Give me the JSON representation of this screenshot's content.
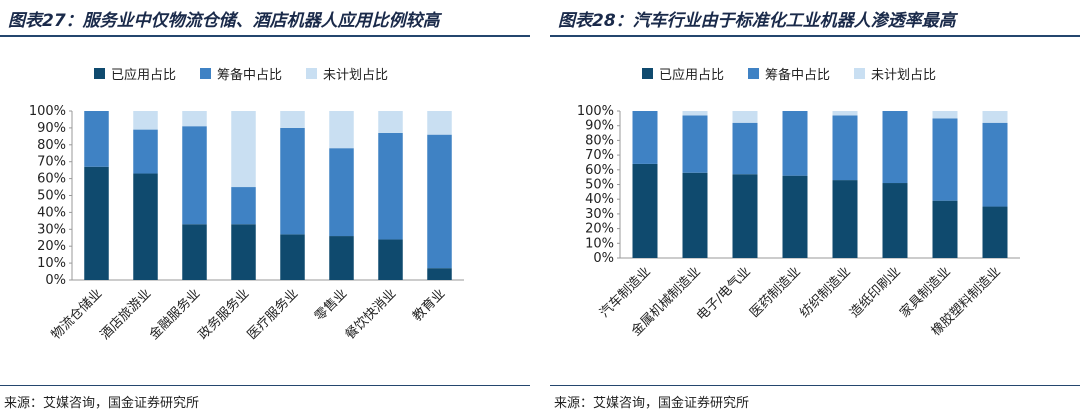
{
  "colors": {
    "s1": "#0f4a6e",
    "s2": "#3f82c4",
    "s3": "#c9dff2"
  },
  "charts": [
    {
      "title": "图表27：服务业中仅物流仓储、酒店机器人应用比例较高",
      "source": "来源：艾媒咨询，国金证券研究所"
    },
    {
      "title": "图表28：汽车行业由于标准化工业机器人渗透率最高",
      "source": "来源：艾媒咨询，国金证券研究所"
    }
  ],
  "chart_data": [
    {
      "type": "bar",
      "stacked": true,
      "title": "图表27：服务业中仅物流仓储、酒店机器人应用比例较高",
      "ylim": [
        0,
        100
      ],
      "yticks": [
        "0%",
        "10%",
        "20%",
        "30%",
        "40%",
        "50%",
        "60%",
        "70%",
        "80%",
        "90%",
        "100%"
      ],
      "legend": "top",
      "categories": [
        "物流仓储业",
        "酒店旅游业",
        "金融服务业",
        "政务服务业",
        "医疗服务业",
        "零售业",
        "餐饮快消业",
        "教育业"
      ],
      "series": [
        {
          "name": "已应用占比",
          "values": [
            67,
            63,
            33,
            33,
            27,
            26,
            24,
            7
          ]
        },
        {
          "name": "筹备中占比",
          "values": [
            33,
            26,
            58,
            22,
            63,
            52,
            63,
            79
          ]
        },
        {
          "name": "未计划占比",
          "values": [
            0,
            11,
            9,
            45,
            10,
            22,
            13,
            14
          ]
        }
      ]
    },
    {
      "type": "bar",
      "stacked": true,
      "title": "图表28：汽车行业由于标准化工业机器人渗透率最高",
      "ylim": [
        0,
        100
      ],
      "yticks": [
        "0%",
        "10%",
        "20%",
        "30%",
        "40%",
        "50%",
        "60%",
        "70%",
        "80%",
        "90%",
        "100%"
      ],
      "legend": "top",
      "categories": [
        "汽车制造业",
        "金属机械制造业",
        "电子/电气业",
        "医药制造业",
        "纺织制造业",
        "造纸印刷业",
        "家具制造业",
        "橡胶塑料制造业"
      ],
      "series": [
        {
          "name": "已应用占比",
          "values": [
            64,
            58,
            57,
            56,
            53,
            51,
            39,
            35
          ]
        },
        {
          "name": "筹备中占比",
          "values": [
            36,
            39,
            35,
            44,
            44,
            49,
            56,
            57
          ]
        },
        {
          "name": "未计划占比",
          "values": [
            0,
            3,
            8,
            0,
            3,
            0,
            5,
            8
          ]
        }
      ]
    }
  ]
}
